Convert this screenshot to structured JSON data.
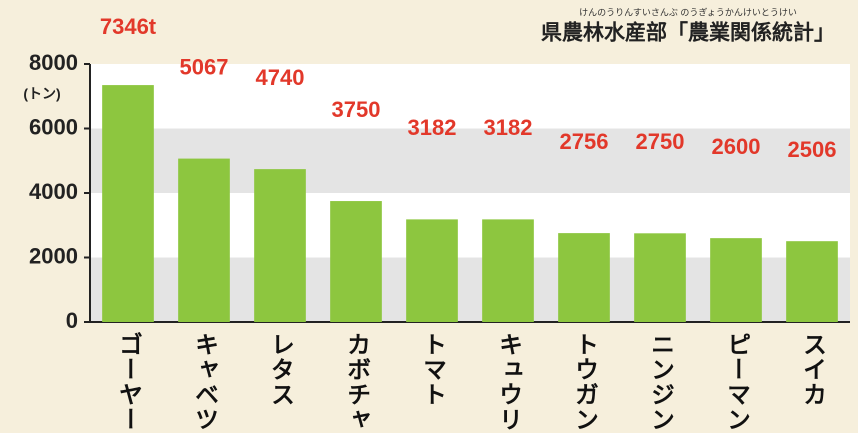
{
  "chart_data": {
    "type": "bar",
    "y_label": "(トン)",
    "source_ruby": "けんのうりんすいさんぶ のうぎょうかんけいとうけい",
    "source": "県農林水産部「農業関係統計」",
    "categories": [
      "ゴーヤー",
      "キャベツ",
      "レタス",
      "カボチャ",
      "トマト",
      "キュウリ",
      "トウガン",
      "ニンジン",
      "ピーマン",
      "スイカ"
    ],
    "values": [
      7346,
      5067,
      4740,
      3750,
      3182,
      3182,
      2756,
      2750,
      2600,
      2506
    ],
    "value_labels": [
      "7346t",
      "5067",
      "4740",
      "3750",
      "3182",
      "3182",
      "2756",
      "2750",
      "2600",
      "2506"
    ],
    "color": "#8dc63f",
    "label_color": "#e2382a",
    "ylim": [
      0,
      8000
    ],
    "yticks": [
      0,
      2000,
      4000,
      6000,
      8000
    ],
    "grid": true
  }
}
